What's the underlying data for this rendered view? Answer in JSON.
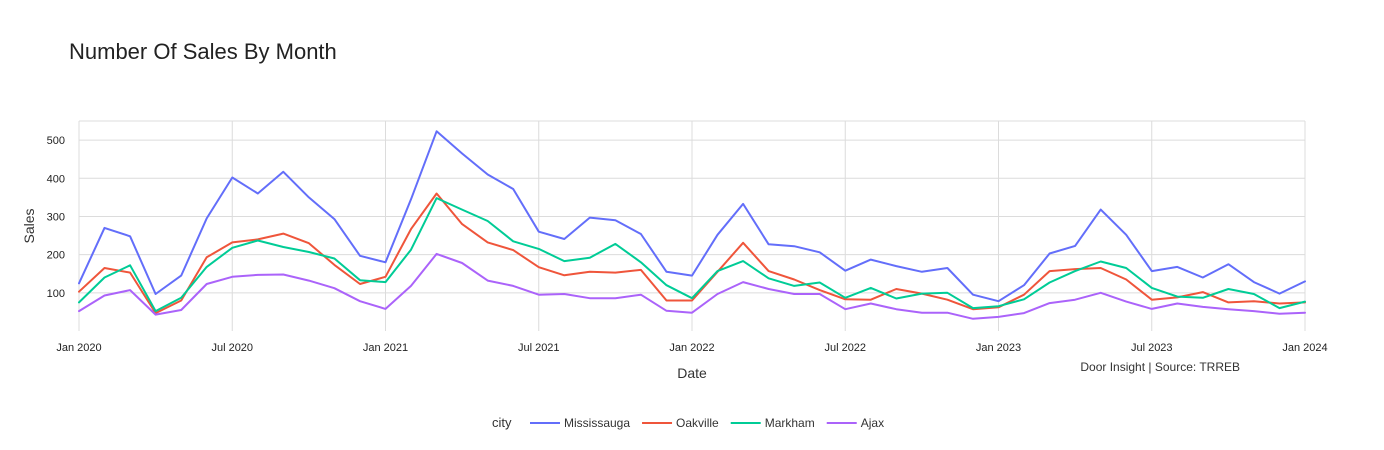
{
  "chart_data": {
    "type": "line",
    "title": "Number Of Sales By Month",
    "xlabel": "Date",
    "ylabel": "Sales",
    "annotation": "Door Insight | Source: TRREB",
    "legend_title": "city",
    "legend_position": "bottom-center",
    "grid": true,
    "xlim": [
      "2020-01",
      "2024-01"
    ],
    "ylim": [
      0,
      550
    ],
    "yticks": [
      100,
      200,
      300,
      400,
      500
    ],
    "xtick_labels": [
      "Jan 2020",
      "Jul 2020",
      "Jan 2021",
      "Jul 2021",
      "Jan 2022",
      "Jul 2022",
      "Jan 2023",
      "Jul 2023",
      "Jan 2024"
    ],
    "xtick_months": [
      "2020-01",
      "2020-07",
      "2021-01",
      "2021-07",
      "2022-01",
      "2022-07",
      "2023-01",
      "2023-07",
      "2024-01"
    ],
    "x": [
      "2020-01",
      "2020-02",
      "2020-03",
      "2020-04",
      "2020-05",
      "2020-06",
      "2020-07",
      "2020-08",
      "2020-09",
      "2020-10",
      "2020-11",
      "2020-12",
      "2021-01",
      "2021-02",
      "2021-03",
      "2021-04",
      "2021-05",
      "2021-06",
      "2021-07",
      "2021-08",
      "2021-09",
      "2021-10",
      "2021-11",
      "2021-12",
      "2022-01",
      "2022-02",
      "2022-03",
      "2022-04",
      "2022-05",
      "2022-06",
      "2022-07",
      "2022-08",
      "2022-09",
      "2022-10",
      "2022-11",
      "2022-12",
      "2023-01",
      "2023-02",
      "2023-03",
      "2023-04",
      "2023-05",
      "2023-06",
      "2023-07",
      "2023-08",
      "2023-09",
      "2023-10",
      "2023-11",
      "2023-12",
      "2024-01"
    ],
    "series": [
      {
        "name": "Mississauga",
        "color": "#636efa",
        "values": [
          125,
          270,
          248,
          97,
          145,
          295,
          402,
          360,
          417,
          350,
          293,
          197,
          180,
          345,
          523,
          465,
          410,
          372,
          260,
          241,
          297,
          290,
          254,
          155,
          145,
          252,
          333,
          227,
          222,
          206,
          158,
          187,
          170,
          155,
          165,
          95,
          78,
          120,
          203,
          223,
          318,
          252,
          157,
          168,
          140,
          175,
          128,
          98,
          130
        ]
      },
      {
        "name": "Oakville",
        "color": "#ef553b",
        "values": [
          103,
          165,
          153,
          47,
          80,
          193,
          232,
          240,
          255,
          230,
          173,
          123,
          142,
          267,
          360,
          280,
          232,
          212,
          167,
          146,
          155,
          153,
          160,
          80,
          80,
          155,
          231,
          157,
          135,
          107,
          83,
          82,
          110,
          98,
          82,
          57,
          62,
          95,
          157,
          162,
          165,
          135,
          82,
          88,
          102,
          75,
          78,
          72,
          75
        ]
      },
      {
        "name": "Markham",
        "color": "#00cc96",
        "values": [
          75,
          140,
          172,
          52,
          87,
          168,
          218,
          237,
          220,
          207,
          190,
          133,
          128,
          213,
          348,
          318,
          288,
          235,
          215,
          183,
          192,
          228,
          180,
          120,
          86,
          157,
          183,
          138,
          118,
          127,
          87,
          113,
          85,
          98,
          100,
          60,
          65,
          83,
          127,
          157,
          182,
          165,
          113,
          90,
          87,
          110,
          97,
          60,
          77
        ]
      },
      {
        "name": "Ajax",
        "color": "#ab63fa",
        "values": [
          52,
          93,
          107,
          43,
          55,
          123,
          142,
          147,
          148,
          132,
          112,
          78,
          58,
          118,
          202,
          178,
          132,
          118,
          95,
          97,
          86,
          86,
          95,
          53,
          48,
          97,
          128,
          110,
          97,
          97,
          57,
          72,
          57,
          48,
          48,
          32,
          37,
          47,
          73,
          82,
          100,
          77,
          58,
          72,
          63,
          57,
          52,
          45,
          48
        ]
      }
    ]
  }
}
